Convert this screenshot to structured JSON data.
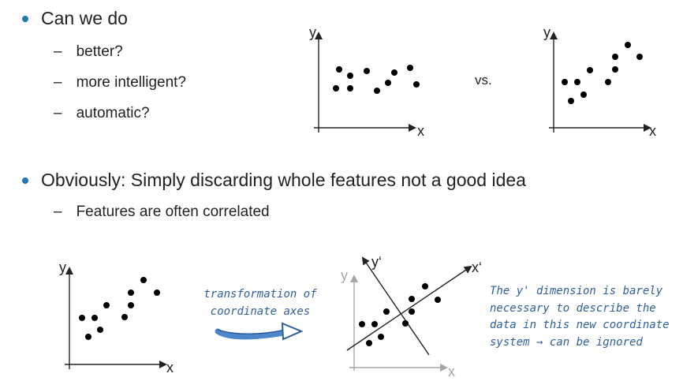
{
  "bullets": [
    {
      "text": "Can we do",
      "subs": [
        "better?",
        "more intelligent?",
        "automatic?"
      ]
    },
    {
      "text": "Obviously: Simply discarding whole features not a good idea",
      "subs": [
        "Features are often correlated"
      ]
    }
  ],
  "sub_marker": "–",
  "vs_label": "vs.",
  "annotation": {
    "transform_lines": [
      "transformation of",
      "coordinate axes"
    ],
    "note_lines": [
      "The y' dimension is barely",
      "necessary to describe the",
      "data in this new coordinate",
      "system → can be ignored"
    ]
  },
  "axes_labels": {
    "x": "x",
    "y": "y",
    "x_prime": "x‘",
    "y_prime": "y‘"
  },
  "colors": {
    "bullet": "#1f77b4",
    "annotation": "#2e5f9b",
    "faded_axis": "#a7a7a7",
    "arrow_fill": "#4e87c7"
  }
}
